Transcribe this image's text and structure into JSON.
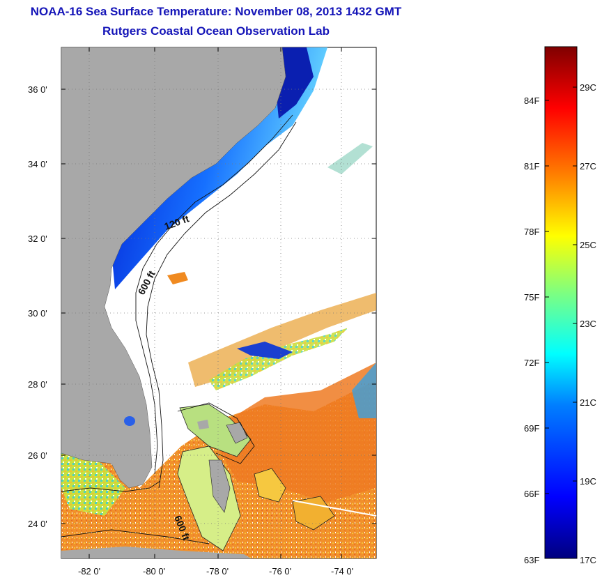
{
  "header": {
    "title": "NOAA-16 Sea Surface Temperature:  November 08, 2013 1432 GMT",
    "subtitle": "Rutgers Coastal Ocean Observation Lab"
  },
  "map": {
    "lat_labels": [
      "36 0'",
      "34 0'",
      "32 0'",
      "30 0'",
      "28 0'",
      "26 0'",
      "24 0'"
    ],
    "lon_labels": [
      "-82 0'",
      "-80 0'",
      "-78 0'",
      "-76 0'",
      "-74 0'"
    ],
    "contour_labels": [
      "120 ft",
      "600 ft",
      "600 ft"
    ]
  },
  "colorbar": {
    "fahrenheit": [
      "84F",
      "81F",
      "78F",
      "75F",
      "72F",
      "69F",
      "66F",
      "63F"
    ],
    "celsius": [
      "29C",
      "27C",
      "25C",
      "23C",
      "21C",
      "19C",
      "17C"
    ]
  },
  "colors": {
    "land": "#a8a8a8",
    "title": "#1515b8",
    "scale": [
      "#00007f",
      "#0000ff",
      "#007fff",
      "#00ffff",
      "#7fff7f",
      "#ffff00",
      "#ff7f00",
      "#ff0000",
      "#7f0000"
    ]
  }
}
